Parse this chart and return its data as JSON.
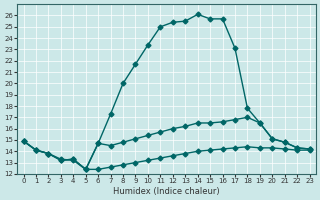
{
  "xlabel": "Humidex (Indice chaleur)",
  "bg_color": "#cce8e8",
  "line_color": "#006666",
  "xlim": [
    -0.5,
    23.5
  ],
  "ylim": [
    12,
    27
  ],
  "yticks": [
    12,
    13,
    14,
    15,
    16,
    17,
    18,
    19,
    20,
    21,
    22,
    23,
    24,
    25,
    26
  ],
  "xticks": [
    0,
    1,
    2,
    3,
    4,
    5,
    6,
    7,
    8,
    9,
    10,
    11,
    12,
    13,
    14,
    15,
    16,
    17,
    18,
    19,
    20,
    21,
    22,
    23
  ],
  "line1_x": [
    0,
    1,
    2,
    3,
    4,
    5,
    6,
    7,
    8,
    9,
    10,
    11,
    12,
    13,
    14,
    15,
    16,
    17,
    18,
    19,
    20,
    21,
    22,
    23
  ],
  "line1_y": [
    14.9,
    14.1,
    13.8,
    13.3,
    13.2,
    12.4,
    14.7,
    17.3,
    20.0,
    21.7,
    23.4,
    25.0,
    25.4,
    25.5,
    26.1,
    25.7,
    25.7,
    23.1,
    17.8,
    16.5,
    15.1,
    14.8,
    14.3,
    14.2
  ],
  "line2_x": [
    0,
    1,
    2,
    3,
    4,
    5,
    6,
    7,
    8,
    9,
    10,
    11,
    12,
    13,
    14,
    15,
    16,
    17,
    18,
    19,
    20,
    21,
    22,
    23
  ],
  "line2_y": [
    14.9,
    14.1,
    13.8,
    13.2,
    13.3,
    12.4,
    14.7,
    14.5,
    14.8,
    15.1,
    15.4,
    15.7,
    16.0,
    16.2,
    16.5,
    16.5,
    16.6,
    16.8,
    17.0,
    16.5,
    15.1,
    14.8,
    14.3,
    14.2
  ],
  "line3_x": [
    0,
    1,
    2,
    3,
    4,
    5,
    6,
    7,
    8,
    9,
    10,
    11,
    12,
    13,
    14,
    15,
    16,
    17,
    18,
    19,
    20,
    21,
    22,
    23
  ],
  "line3_y": [
    14.9,
    14.1,
    13.8,
    13.2,
    13.3,
    12.4,
    12.4,
    12.6,
    12.8,
    13.0,
    13.2,
    13.4,
    13.6,
    13.8,
    14.0,
    14.1,
    14.2,
    14.3,
    14.4,
    14.3,
    14.3,
    14.2,
    14.1,
    14.1
  ]
}
